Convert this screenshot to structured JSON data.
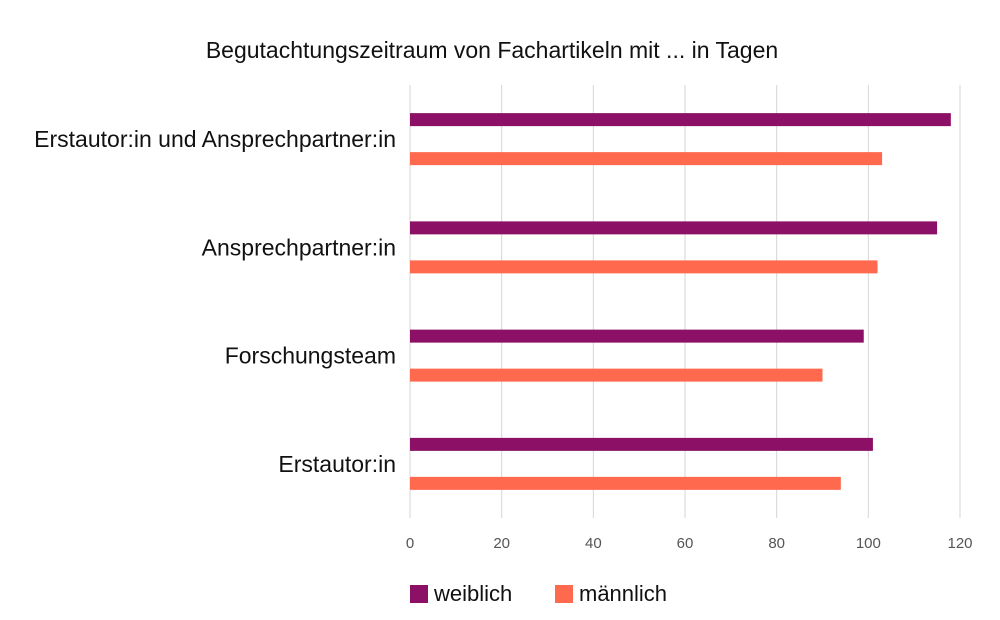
{
  "chart_data": {
    "type": "bar",
    "orientation": "horizontal",
    "title": "Begutachtungszeitraum von Fachartikeln mit ...  in Tagen",
    "xlabel": "",
    "ylabel": "",
    "categories": [
      "Erstautor:in und Ansprechpartner:in",
      "Ansprechpartner:in",
      "Forschungsteam",
      "Erstautor:in"
    ],
    "series": [
      {
        "name": "weiblich",
        "color": "#8b1066",
        "values": [
          118,
          115,
          99,
          101
        ]
      },
      {
        "name": "männlich",
        "color": "#ff6a4f",
        "values": [
          103,
          102,
          90,
          94
        ]
      }
    ],
    "xlim": [
      0,
      120
    ],
    "xticks": [
      0,
      20,
      40,
      60,
      80,
      100,
      120
    ],
    "grid": true,
    "legend_position": "bottom"
  }
}
